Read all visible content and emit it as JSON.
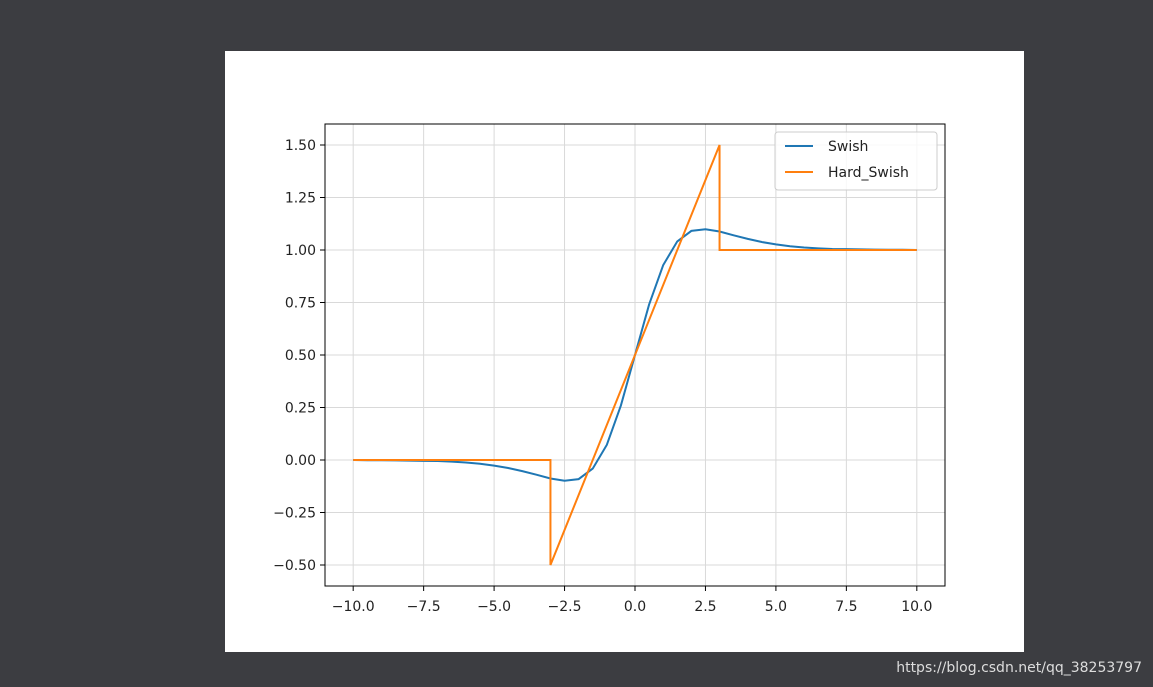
{
  "chart_data": {
    "type": "line",
    "xlim": [
      -11,
      11
    ],
    "ylim": [
      -0.6,
      1.6
    ],
    "xticks": [
      {
        "value": -10,
        "label": "−10.0"
      },
      {
        "value": -7.5,
        "label": "−7.5"
      },
      {
        "value": -5,
        "label": "−5.0"
      },
      {
        "value": -2.5,
        "label": "−2.5"
      },
      {
        "value": 0,
        "label": "0.0"
      },
      {
        "value": 2.5,
        "label": "2.5"
      },
      {
        "value": 5,
        "label": "5.0"
      },
      {
        "value": 7.5,
        "label": "7.5"
      },
      {
        "value": 10,
        "label": "10.0"
      }
    ],
    "yticks": [
      {
        "value": -0.5,
        "label": "−0.50"
      },
      {
        "value": -0.25,
        "label": "−0.25"
      },
      {
        "value": 0,
        "label": "0.00"
      },
      {
        "value": 0.25,
        "label": "0.25"
      },
      {
        "value": 0.5,
        "label": "0.50"
      },
      {
        "value": 0.75,
        "label": "0.75"
      },
      {
        "value": 1,
        "label": "1.00"
      },
      {
        "value": 1.25,
        "label": "1.25"
      },
      {
        "value": 1.5,
        "label": "1.50"
      }
    ],
    "grid": true,
    "legend": "upper right",
    "series": [
      {
        "name": "Swish",
        "color": "#1f77b4",
        "x": [
          -10,
          -9.5,
          -9,
          -8.5,
          -8,
          -7.5,
          -7,
          -6.5,
          -6,
          -5.5,
          -5,
          -4.5,
          -4,
          -3.5,
          -3,
          -2.5,
          -2,
          -1.5,
          -1,
          -0.5,
          0,
          0.5,
          1,
          1.5,
          2,
          2.5,
          3,
          3.5,
          4,
          4.5,
          5,
          5.5,
          6,
          6.5,
          7,
          7.5,
          8,
          8.5,
          9,
          9.5,
          10
        ],
        "values": [
          0,
          -0.001,
          -0.001,
          -0.002,
          -0.003,
          -0.004,
          -0.005,
          -0.008,
          -0.012,
          -0.018,
          -0.027,
          -0.038,
          -0.053,
          -0.07,
          -0.088,
          -0.099,
          -0.091,
          -0.041,
          0.072,
          0.26,
          0.5,
          0.74,
          0.928,
          1.041,
          1.091,
          1.099,
          1.088,
          1.07,
          1.053,
          1.038,
          1.027,
          1.018,
          1.012,
          1.008,
          1.005,
          1.004,
          1.003,
          1.002,
          1.001,
          1.001,
          1
        ]
      },
      {
        "name": "Hard_Swish",
        "color": "#ff7f0e",
        "x": [
          -10,
          -3,
          -3,
          3,
          3,
          10
        ],
        "values": [
          0,
          0,
          -0.5,
          1.5,
          1,
          1
        ]
      }
    ]
  },
  "watermark": "https://blog.csdn.net/qq_38253797"
}
